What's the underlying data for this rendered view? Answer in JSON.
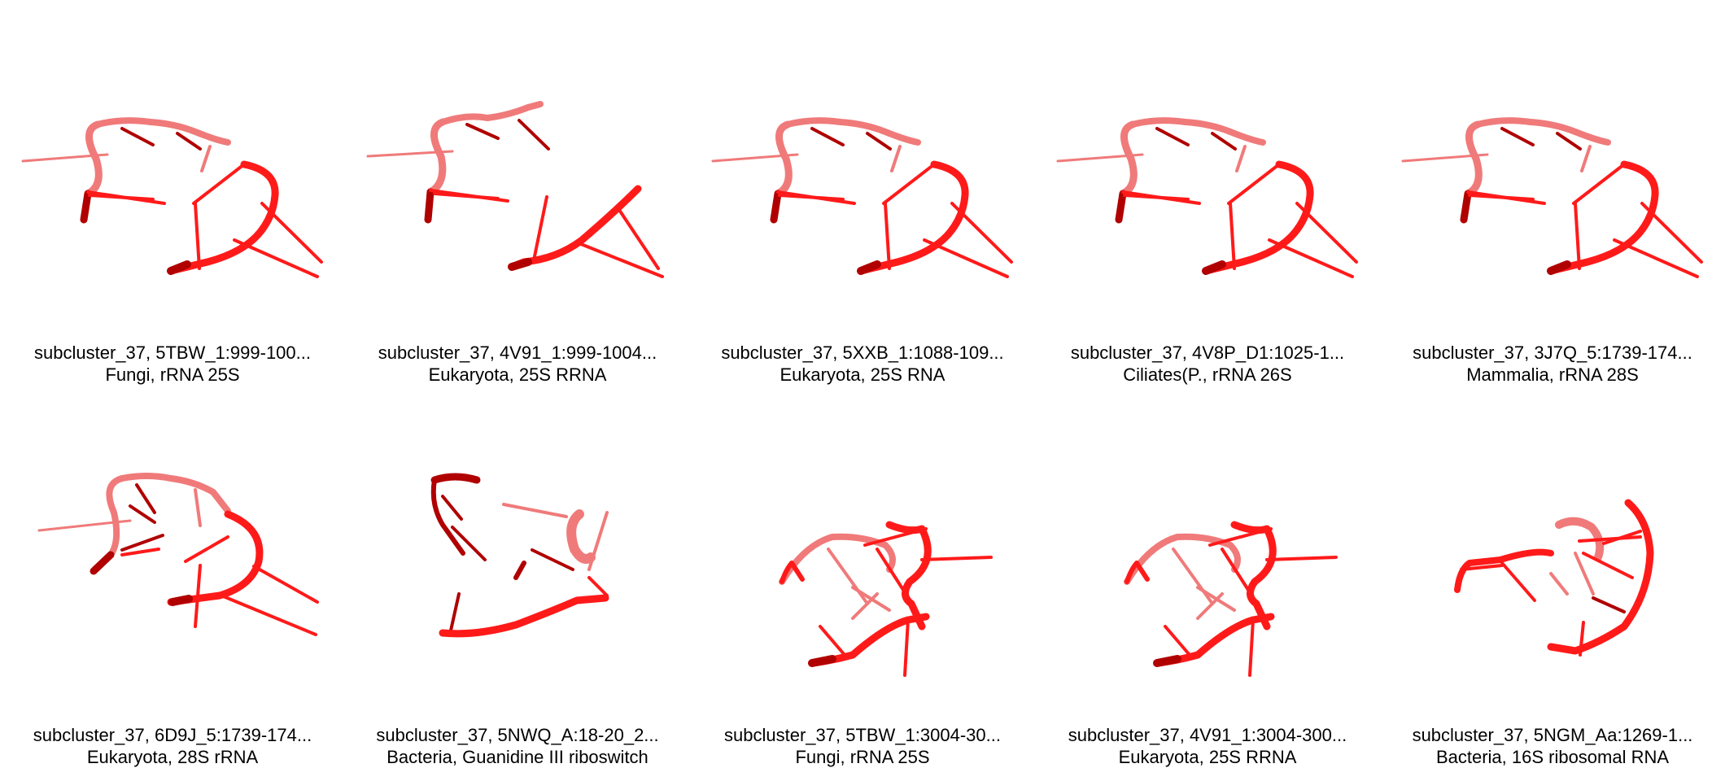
{
  "colors": {
    "strand_dark": "#b00000",
    "strand_main": "#ff1a1a",
    "strand_light": "#f07a7a",
    "background": "#ffffff"
  },
  "tiles": [
    {
      "line1": "subcluster_37, 5TBW_1:999-100...",
      "line2": "Fungi, rRNA 25S"
    },
    {
      "line1": "subcluster_37, 4V91_1:999-1004...",
      "line2": "Eukaryota, 25S RRNA"
    },
    {
      "line1": "subcluster_37, 5XXB_1:1088-109...",
      "line2": "Eukaryota, 25S RNA"
    },
    {
      "line1": "subcluster_37, 4V8P_D1:1025-1...",
      "line2": "Ciliates(P., rRNA 26S"
    },
    {
      "line1": "subcluster_37, 3J7Q_5:1739-174...",
      "line2": "Mammalia, rRNA 28S"
    },
    {
      "line1": "subcluster_37, 6D9J_5:1739-174...",
      "line2": "Eukaryota, 28S rRNA"
    },
    {
      "line1": "subcluster_37, 5NWQ_A:18-20_2...",
      "line2": "Bacteria, Guanidine III riboswitch"
    },
    {
      "line1": "subcluster_37, 5TBW_1:3004-30...",
      "line2": "Fungi, rRNA 25S"
    },
    {
      "line1": "subcluster_37, 4V91_1:3004-300...",
      "line2": "Eukaryota, 25S RRNA"
    },
    {
      "line1": "subcluster_37, 5NGM_Aa:1269-1...",
      "line2": "Bacteria, 16S ribosomal RNA"
    }
  ]
}
